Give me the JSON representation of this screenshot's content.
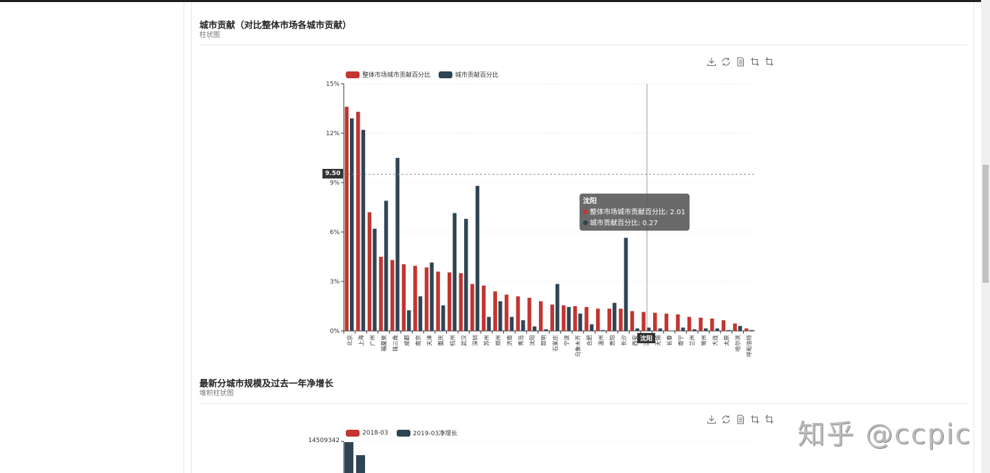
{
  "section1": {
    "title": "城市贡献（对比整体市场各城市贡献）",
    "subtitle": "柱状图",
    "toolbox": [
      "download-icon",
      "refresh-icon",
      "data-view-icon",
      "zoom-icon",
      "zoom-reset-icon"
    ],
    "mark_line_label": "9.50",
    "tooltip": {
      "title": "沈阳",
      "row1": "整体市场城市贡献百分比: 2.01",
      "row2": "城市贡献百分比: 0.27"
    },
    "axis_pointer_label": "沈阳"
  },
  "section2": {
    "title": "最新分城市规模及过去一年净增长",
    "subtitle": "堆积柱状图",
    "legend": [
      "2018-03",
      "2019-03净增长"
    ],
    "y_top_label": "14509342",
    "colors": {
      "series1": "#c23531",
      "series2": "#2f4554"
    }
  },
  "watermark": "知乎 @ccpic",
  "chart_data": [
    {
      "type": "bar",
      "title": "城市贡献（对比整体市场各城市贡献）",
      "subtitle": "柱状图",
      "xlabel": "",
      "ylabel": "",
      "ylim": [
        0,
        15
      ],
      "yticks": [
        "0%",
        "3%",
        "6%",
        "9%",
        "12%",
        "15%"
      ],
      "legend_position": "top",
      "grid": true,
      "mark_line": {
        "value": 9.5,
        "style": "dashed"
      },
      "categories": [
        "北京",
        "上海",
        "广州",
        "福厦泉",
        "珠三角",
        "成都",
        "南京",
        "天津",
        "重庆",
        "杭州",
        "武汉",
        "深圳",
        "苏州",
        "郑州",
        "济南",
        "青岛",
        "沈阳",
        "昆明",
        "石家庄",
        "宁波",
        "乌鲁木齐",
        "合肥",
        "温州",
        "贵阳",
        "长沙",
        "西安",
        "沈阳",
        "无锡",
        "长春",
        "南宁",
        "兰州",
        "常州",
        "大连",
        "太原",
        "哈尔滨",
        "呼和浩特"
      ],
      "series": [
        {
          "name": "整体市场城市贡献百分比",
          "color": "#c23531",
          "values": [
            13.6,
            13.3,
            7.2,
            4.5,
            4.3,
            4.05,
            3.95,
            3.85,
            3.6,
            3.55,
            3.5,
            2.85,
            2.75,
            2.4,
            2.2,
            2.1,
            2.01,
            1.8,
            1.6,
            1.55,
            1.5,
            1.45,
            1.35,
            1.35,
            1.35,
            1.2,
            1.15,
            1.1,
            1.05,
            1.0,
            0.85,
            0.8,
            0.75,
            0.65,
            0.45,
            0.15
          ]
        },
        {
          "name": "城市贡献百分比",
          "color": "#2f4554",
          "values": [
            12.9,
            12.2,
            6.2,
            7.9,
            10.5,
            1.25,
            2.1,
            4.15,
            1.55,
            7.15,
            6.8,
            8.8,
            0.85,
            1.8,
            0.85,
            0.65,
            0.27,
            0.1,
            2.85,
            1.45,
            1.05,
            0.4,
            0.05,
            1.7,
            5.65,
            0.15,
            0.2,
            0.15,
            0.0,
            0.2,
            0.1,
            0.15,
            0.15,
            0.05,
            0.3,
            0.05
          ]
        }
      ]
    },
    {
      "type": "bar",
      "title": "最新分城市规模及过去一年净增长",
      "subtitle": "堆积柱状图",
      "legend": [
        "2018-03",
        "2019-03净增长"
      ],
      "y_top_tick": 14509342,
      "series": [
        {
          "name": "2018-03",
          "values": []
        },
        {
          "name": "2019-03净增长",
          "values": []
        }
      ]
    }
  ]
}
